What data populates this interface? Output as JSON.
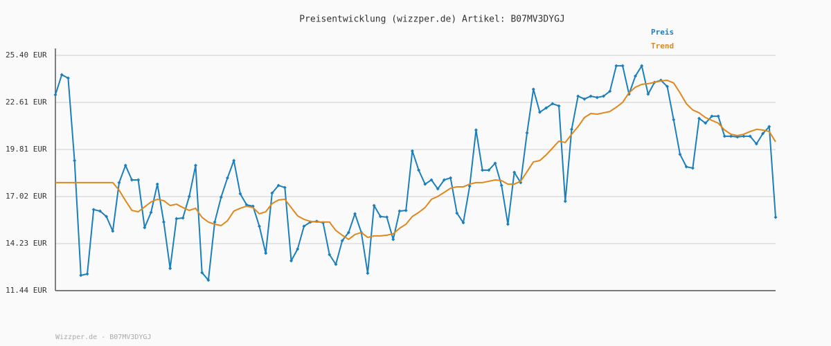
{
  "chart_data": {
    "type": "line",
    "title": "Preisentwicklung (wizzper.de) Artikel: B07MV3DYGJ",
    "footer": "Wizzper.de - B07MV3DYGJ",
    "legend": "top-right",
    "grid": true,
    "ylim": [
      11.44,
      25.4
    ],
    "yticks": [
      {
        "value": 11.44,
        "label": "11.44 EUR"
      },
      {
        "value": 14.23,
        "label": "14.23 EUR"
      },
      {
        "value": 17.02,
        "label": "17.02 EUR"
      },
      {
        "value": 19.81,
        "label": "19.81 EUR"
      },
      {
        "value": 22.61,
        "label": "22.61 EUR"
      },
      {
        "value": 25.4,
        "label": "25.40 EUR"
      }
    ],
    "series": [
      {
        "name": "Preis",
        "color": "#1a7fba",
        "markers": true,
        "values": [
          23.06,
          24.25,
          24.05,
          19.16,
          12.35,
          12.43,
          16.25,
          16.16,
          15.84,
          14.97,
          17.85,
          18.87,
          18.01,
          18.01,
          15.18,
          16.08,
          17.76,
          15.51,
          12.76,
          15.71,
          15.75,
          17.03,
          18.87,
          12.51,
          12.06,
          15.51,
          16.99,
          18.13,
          19.16,
          17.19,
          16.53,
          16.45,
          15.26,
          13.66,
          17.23,
          17.68,
          17.56,
          13.21,
          13.91,
          15.26,
          15.51,
          15.55,
          15.47,
          13.58,
          13.0,
          14.4,
          14.89,
          16.0,
          14.89,
          12.47,
          16.49,
          15.84,
          15.8,
          14.48,
          16.16,
          16.2,
          19.73,
          18.59,
          17.76,
          18.01,
          17.48,
          18.01,
          18.13,
          16.04,
          15.47,
          17.64,
          20.97,
          18.59,
          18.59,
          19.0,
          17.68,
          15.38,
          18.46,
          17.85,
          20.8,
          23.39,
          22.03,
          22.28,
          22.53,
          22.4,
          16.74,
          21.01,
          22.98,
          22.81,
          22.98,
          22.9,
          22.98,
          23.27,
          24.78,
          24.78,
          23.1,
          24.17,
          24.78,
          23.1,
          23.8,
          23.92,
          23.55,
          21.58,
          19.53,
          18.79,
          18.71,
          21.66,
          21.38,
          21.79,
          21.79,
          20.6,
          20.6,
          20.56,
          20.6,
          20.6,
          20.15,
          20.76,
          21.17,
          15.79
        ]
      },
      {
        "name": "Trend",
        "color": "#e0871c",
        "markers": false,
        "values": [
          17.85,
          17.85,
          17.85,
          17.85,
          17.85,
          17.85,
          17.85,
          17.85,
          17.85,
          17.85,
          17.4,
          16.78,
          16.2,
          16.12,
          16.41,
          16.7,
          16.86,
          16.78,
          16.49,
          16.57,
          16.37,
          16.2,
          16.33,
          15.79,
          15.51,
          15.38,
          15.3,
          15.59,
          16.16,
          16.33,
          16.45,
          16.37,
          16.0,
          16.12,
          16.61,
          16.82,
          16.86,
          16.37,
          15.88,
          15.67,
          15.55,
          15.51,
          15.51,
          15.51,
          15.01,
          14.73,
          14.48,
          14.77,
          14.89,
          14.6,
          14.69,
          14.69,
          14.73,
          14.81,
          15.14,
          15.38,
          15.84,
          16.08,
          16.37,
          16.86,
          17.03,
          17.27,
          17.52,
          17.6,
          17.6,
          17.76,
          17.85,
          17.85,
          17.93,
          18.01,
          17.97,
          17.76,
          17.76,
          17.93,
          18.5,
          19.08,
          19.16,
          19.49,
          19.9,
          20.31,
          20.23,
          20.72,
          21.17,
          21.71,
          21.95,
          21.91,
          21.99,
          22.07,
          22.32,
          22.61,
          23.18,
          23.51,
          23.68,
          23.72,
          23.8,
          23.88,
          23.92,
          23.76,
          23.18,
          22.53,
          22.16,
          21.99,
          21.71,
          21.54,
          21.38,
          20.97,
          20.72,
          20.64,
          20.72,
          20.88,
          21.01,
          20.97,
          20.88,
          20.27
        ]
      }
    ]
  }
}
